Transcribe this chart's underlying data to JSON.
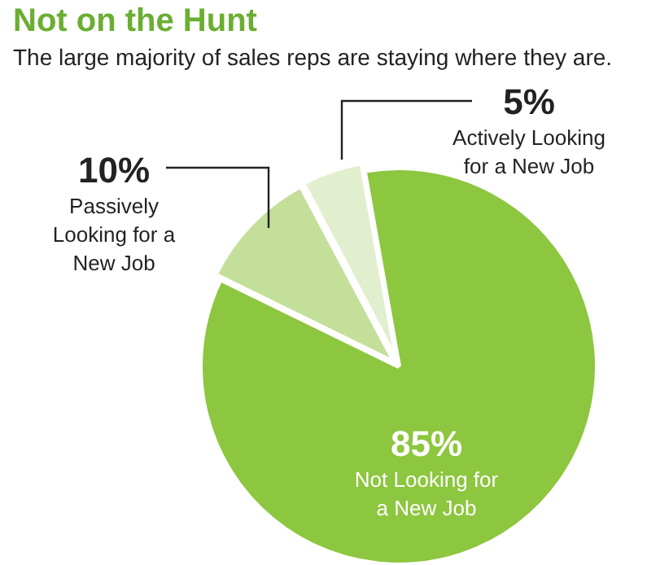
{
  "chart_data": {
    "type": "pie",
    "title": "Not on the Hunt",
    "subtitle": "The large majority of sales reps are staying where they are.",
    "categories": [
      "Not Looking for a New Job",
      "Passively Looking for a New Job",
      "Actively Looking for a New Job"
    ],
    "values": [
      85,
      10,
      5
    ],
    "colors": [
      "#8dc63f",
      "#c3df9a",
      "#e2efcf"
    ],
    "value_labels": [
      "85%",
      "10%",
      "5%"
    ],
    "legend": false
  }
}
